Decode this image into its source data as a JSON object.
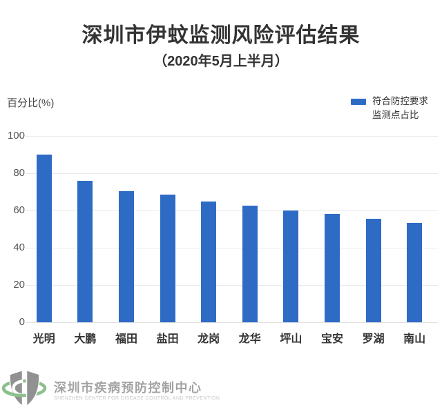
{
  "header": {
    "title": "深圳市伊蚊监测风险评估结果",
    "subtitle": "（2020年5月上半月）"
  },
  "legend": {
    "line1": "符合防控要求",
    "line2": "监测点占比",
    "swatch_color": "#2e6bc5"
  },
  "chart_data": {
    "type": "bar",
    "title": "深圳市伊蚊监测风险评估结果",
    "subtitle": "（2020年5月上半月）",
    "ylabel": "百分比(%)",
    "xlabel": "",
    "categories": [
      "光明",
      "大鹏",
      "福田",
      "盐田",
      "龙岗",
      "龙华",
      "坪山",
      "宝安",
      "罗湖",
      "南山"
    ],
    "values": [
      90,
      76,
      70.5,
      68.5,
      65,
      62.5,
      60,
      58,
      55.5,
      53.5
    ],
    "series_name": "符合防控要求监测点占比",
    "ylim": [
      0,
      100
    ],
    "yticks": [
      0,
      20,
      40,
      60,
      80,
      100
    ],
    "grid": true,
    "legend_position": "top-right",
    "bar_color": "#2e6bc5",
    "grid_color": "#e9e9e9"
  },
  "footer": {
    "org_cn": "深圳市疾病预防控制中心",
    "org_en": "SHENZHEN CENTER FOR DISEASE CONTROL AND PREVENTION"
  },
  "colors": {
    "bar": "#2e6bc5",
    "grid": "#e9e9e9",
    "title_text": "#333333",
    "tick_text": "#555555",
    "footer_cn": "#a3a3a3",
    "footer_en": "#c9c9c9",
    "logo_gray": "#919191",
    "logo_green": "#8cc08c"
  }
}
